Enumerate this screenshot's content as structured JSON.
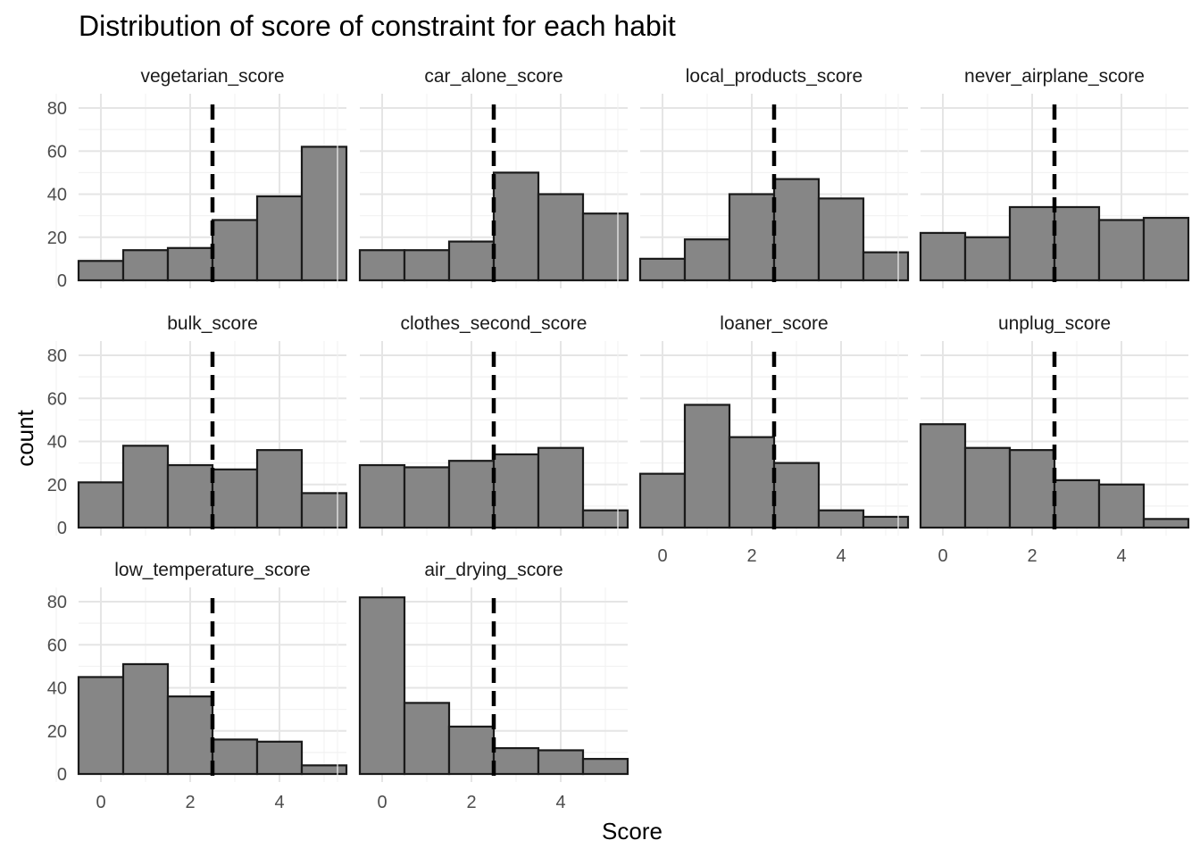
{
  "chart_data": {
    "type": "bar",
    "title": "Distribution of score of constraint for each habit",
    "xlabel": "Score",
    "ylabel": "count",
    "bins": [
      0,
      1,
      2,
      3,
      4,
      5
    ],
    "bin_width": 1,
    "xlim": [
      -0.5,
      5.5
    ],
    "ylim": [
      0,
      85
    ],
    "x_ticks": [
      0,
      2,
      4
    ],
    "y_ticks": [
      0,
      20,
      40,
      60,
      80
    ],
    "reference_line": {
      "x": 2.5,
      "style": "dashed",
      "color": "#000000"
    },
    "bar_fill": "#868686",
    "bar_stroke": "#1a1a1a",
    "grid": true,
    "panels": [
      {
        "name": "vegetarian_score",
        "values": [
          9,
          14,
          15,
          28,
          39,
          62
        ]
      },
      {
        "name": "car_alone_score",
        "values": [
          14,
          14,
          18,
          50,
          40,
          31
        ]
      },
      {
        "name": "local_products_score",
        "values": [
          10,
          19,
          40,
          47,
          38,
          13
        ]
      },
      {
        "name": "never_airplane_score",
        "values": [
          22,
          20,
          34,
          34,
          28,
          29
        ]
      },
      {
        "name": "bulk_score",
        "values": [
          21,
          38,
          29,
          27,
          36,
          16
        ]
      },
      {
        "name": "clothes_second_score",
        "values": [
          29,
          28,
          31,
          34,
          37,
          8
        ]
      },
      {
        "name": "loaner_score",
        "values": [
          25,
          57,
          42,
          30,
          8,
          5
        ]
      },
      {
        "name": "unplug_score",
        "values": [
          48,
          37,
          36,
          22,
          20,
          4
        ]
      },
      {
        "name": "low_temperature_score",
        "values": [
          45,
          51,
          36,
          16,
          15,
          4
        ]
      },
      {
        "name": "air_drying_score",
        "values": [
          82,
          33,
          22,
          12,
          11,
          7
        ]
      }
    ]
  }
}
